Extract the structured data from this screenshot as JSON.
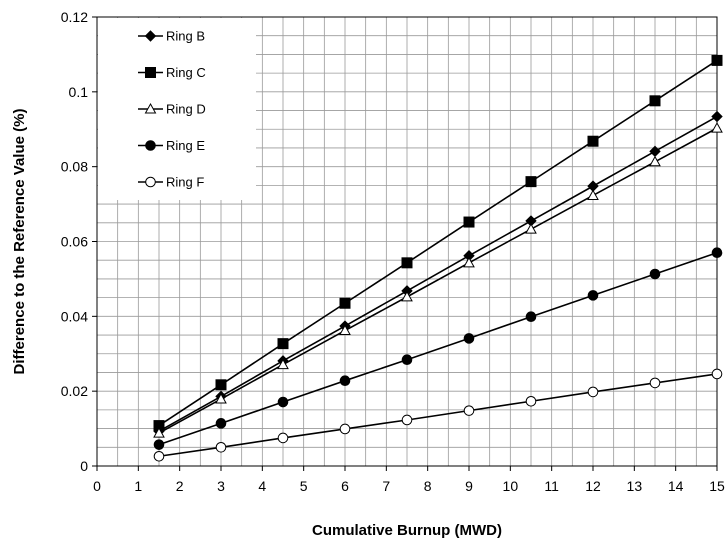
{
  "chart_data": {
    "type": "line",
    "xlabel": "Cumulative Burnup (MWD)",
    "ylabel": "Difference to the Reference Value (%)",
    "xlim": [
      0,
      15
    ],
    "ylim": [
      0,
      0.12
    ],
    "x_ticks": [
      "0",
      "1",
      "2",
      "3",
      "4",
      "5",
      "6",
      "7",
      "8",
      "9",
      "10",
      "11",
      "12",
      "13",
      "14",
      "15"
    ],
    "y_ticks": [
      "0",
      "0.02",
      "0.04",
      "0.06",
      "0.08",
      "0.1",
      "0.12"
    ],
    "grid": true,
    "legend_position": "top-left",
    "x": [
      1.5,
      3,
      4.5,
      6,
      7.5,
      9,
      10.5,
      12,
      13.5,
      15
    ],
    "series": [
      {
        "name": "Ring B",
        "marker": "diamond-filled",
        "values": [
          0.0093,
          0.0186,
          0.0281,
          0.0374,
          0.0468,
          0.0562,
          0.0655,
          0.0748,
          0.0841,
          0.0934
        ]
      },
      {
        "name": "Ring C",
        "marker": "square-filled",
        "values": [
          0.0108,
          0.0217,
          0.0327,
          0.0435,
          0.0543,
          0.0652,
          0.076,
          0.0868,
          0.0976,
          0.1084
        ]
      },
      {
        "name": "Ring D",
        "marker": "triangle-open",
        "values": [
          0.0088,
          0.0179,
          0.0271,
          0.0362,
          0.0452,
          0.0543,
          0.0633,
          0.0723,
          0.0813,
          0.0903
        ]
      },
      {
        "name": "Ring E",
        "marker": "circle-filled",
        "values": [
          0.0057,
          0.0114,
          0.0171,
          0.0228,
          0.0284,
          0.0341,
          0.0399,
          0.0456,
          0.0513,
          0.057
        ]
      },
      {
        "name": "Ring F",
        "marker": "circle-open",
        "values": [
          0.0026,
          0.005,
          0.0075,
          0.0099,
          0.0123,
          0.0148,
          0.0173,
          0.0198,
          0.0222,
          0.0246
        ]
      }
    ]
  }
}
